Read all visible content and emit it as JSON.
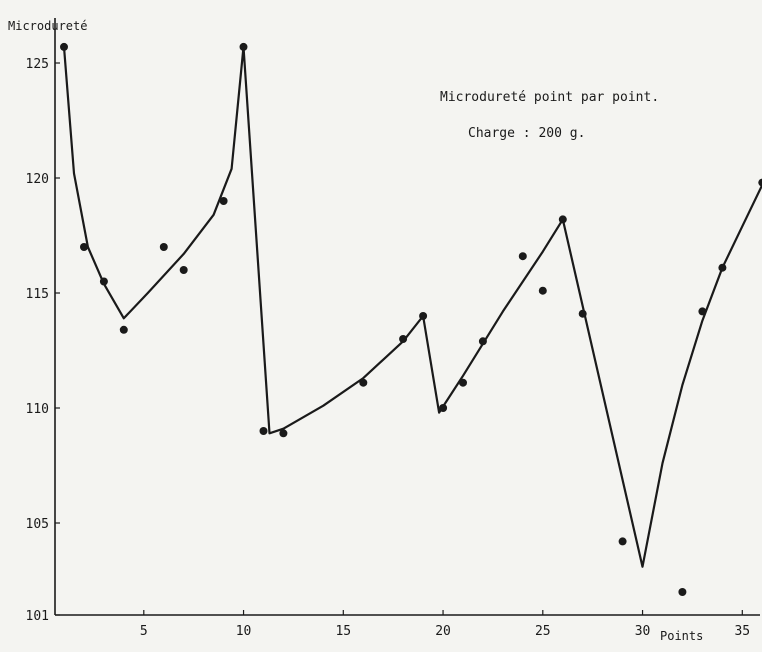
{
  "chart_data": {
    "type": "scatter",
    "xlabel": "Points",
    "ylabel": "Microdureté",
    "annotations": [
      "Microdureté point par point.",
      "Charge : 200 g."
    ],
    "x_ticks": [
      5,
      10,
      15,
      20,
      25,
      30,
      35
    ],
    "y_ticks": [
      101,
      105,
      110,
      115,
      120,
      125
    ],
    "xlim": [
      0.5,
      36.5
    ],
    "ylim": [
      101,
      126
    ],
    "grid": false,
    "series": [
      {
        "style": "markers",
        "points": [
          [
            1,
            125.7
          ],
          [
            2,
            117.0
          ],
          [
            3,
            115.5
          ],
          [
            4,
            113.4
          ],
          [
            6,
            117.0
          ],
          [
            7,
            116.0
          ],
          [
            9,
            119.0
          ],
          [
            10,
            125.7
          ],
          [
            11,
            109.0
          ],
          [
            12,
            108.9
          ],
          [
            16,
            111.1
          ],
          [
            18,
            113.0
          ],
          [
            19,
            114.0
          ],
          [
            20,
            110.0
          ],
          [
            21,
            111.1
          ],
          [
            22,
            112.9
          ],
          [
            24,
            116.6
          ],
          [
            25,
            115.1
          ],
          [
            26,
            118.2
          ],
          [
            27,
            114.1
          ],
          [
            29,
            104.2
          ],
          [
            32,
            102.0
          ],
          [
            33,
            114.2
          ],
          [
            34,
            116.1
          ],
          [
            36,
            119.8
          ]
        ]
      },
      {
        "style": "line",
        "points": [
          [
            1,
            125.7
          ],
          [
            1.5,
            120.2
          ],
          [
            2.2,
            117.0
          ],
          [
            3.0,
            115.4
          ],
          [
            4,
            113.9
          ],
          [
            5.2,
            115.0
          ],
          [
            7,
            116.7
          ],
          [
            8.5,
            118.4
          ],
          [
            9.4,
            120.4
          ],
          [
            10,
            125.7
          ],
          [
            11.3,
            108.9
          ],
          [
            12,
            109.1
          ],
          [
            14,
            110.1
          ],
          [
            16,
            111.3
          ],
          [
            18,
            112.9
          ],
          [
            19,
            114.0
          ],
          [
            19.8,
            109.8
          ],
          [
            21,
            111.4
          ],
          [
            23,
            114.2
          ],
          [
            25,
            116.8
          ],
          [
            26,
            118.2
          ],
          [
            30,
            103.1
          ],
          [
            31,
            107.6
          ],
          [
            32,
            111.0
          ],
          [
            33,
            113.8
          ],
          [
            34,
            116.1
          ],
          [
            35,
            117.9
          ],
          [
            36,
            119.7
          ]
        ]
      }
    ]
  }
}
